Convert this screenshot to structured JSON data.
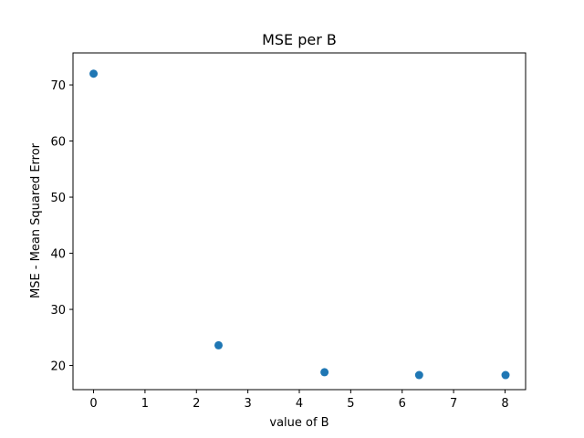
{
  "chart_data": {
    "type": "scatter",
    "title": "MSE per B",
    "xlabel": "value of B",
    "ylabel": "MSE - Mean Squared Error",
    "xlim": [
      -0.4,
      8.4
    ],
    "ylim": [
      15.7,
      75.7
    ],
    "xticks": [
      0,
      1,
      2,
      3,
      4,
      5,
      6,
      7,
      8
    ],
    "yticks": [
      20,
      30,
      40,
      50,
      60,
      70
    ],
    "grid": false,
    "marker_color": "#1f77b4",
    "points": [
      {
        "x": 0.0,
        "y": 72.0
      },
      {
        "x": 2.43,
        "y": 23.6
      },
      {
        "x": 4.49,
        "y": 18.8
      },
      {
        "x": 6.33,
        "y": 18.3
      },
      {
        "x": 8.01,
        "y": 18.3
      }
    ]
  }
}
